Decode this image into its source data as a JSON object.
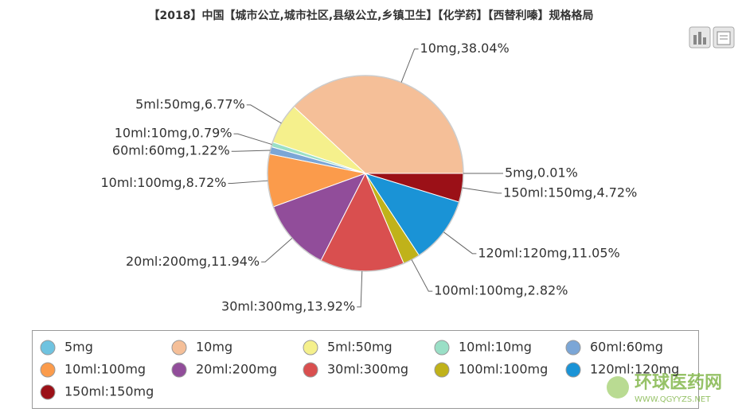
{
  "chart_data": {
    "type": "pie",
    "title": "【2018】中国【城市公立,城市社区,县级公立,乡镇卫生】【化学药】【西替利嗪】规格格局",
    "categories": [
      "5mg",
      "10mg",
      "5ml:50mg",
      "10ml:10mg",
      "60ml:60mg",
      "10ml:100mg",
      "20ml:200mg",
      "30ml:300mg",
      "100ml:100mg",
      "120ml:120mg",
      "150ml:150mg"
    ],
    "values": [
      0.01,
      38.04,
      6.77,
      0.79,
      1.22,
      8.72,
      11.94,
      13.92,
      2.82,
      11.05,
      4.72
    ],
    "value_labels": [
      "5mg,0.01%",
      "10mg,38.04%",
      "5ml:50mg,6.77%",
      "10ml:10mg,0.79%",
      "60ml:60mg,1.22%",
      "10ml:100mg,8.72%",
      "20ml:200mg,11.94%",
      "30ml:300mg,13.92%",
      "100ml:100mg,2.82%",
      "120ml:120mg,11.05%",
      "150ml:150mg,4.72%"
    ],
    "colors": [
      "#6fc3e0",
      "#f5bf98",
      "#f5f08c",
      "#9adfc6",
      "#7ba6d6",
      "#fb9b4b",
      "#914d9a",
      "#d94f4f",
      "#c0b21a",
      "#1a93d6",
      "#9b1017"
    ]
  },
  "watermark": {
    "name": "环球医药网",
    "url": "WWW.QGYYZS.NET"
  }
}
